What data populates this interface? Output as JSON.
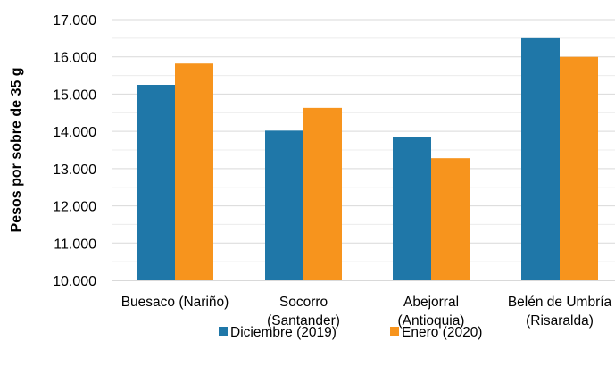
{
  "chart_data": {
    "type": "bar",
    "categories": [
      [
        "Buesaco (Nariño)"
      ],
      [
        "Socorro",
        "(Santander)"
      ],
      [
        "Abejorral",
        "(Antioquia)"
      ],
      [
        "Belén de Umbría",
        "(Risaralda)"
      ]
    ],
    "series": [
      {
        "name": "Diciembre (2019)",
        "color": "#1f77a8",
        "values": [
          15250,
          14020,
          13850,
          16500
        ]
      },
      {
        "name": "Enero (2020)",
        "color": "#f7941d",
        "values": [
          15820,
          14630,
          13280,
          16000
        ]
      }
    ],
    "ylabel": "Pesos por sobre de 35 g",
    "ylim": [
      10000,
      17000
    ],
    "yticks": [
      {
        "value": 10000,
        "label": "10.000"
      },
      {
        "value": 11000,
        "label": "11.000"
      },
      {
        "value": 12000,
        "label": "12.000"
      },
      {
        "value": 13000,
        "label": "13.000"
      },
      {
        "value": 14000,
        "label": "14.000"
      },
      {
        "value": 15000,
        "label": "15.000"
      },
      {
        "value": 16000,
        "label": "16.000"
      },
      {
        "value": 17000,
        "label": "17.000"
      }
    ],
    "grid": true,
    "legend_position": "bottom"
  }
}
